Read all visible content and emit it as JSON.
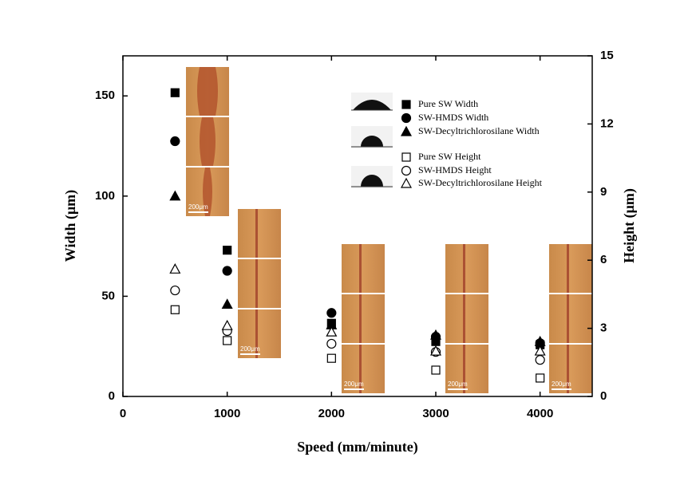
{
  "chart_data": {
    "type": "scatter",
    "x_label": "Speed (mm/minute)",
    "y_label": "Width (μm)",
    "y2_label": "Height (μm)",
    "xlim": [
      0,
      4500
    ],
    "xticks": [
      0,
      1000,
      2000,
      3000,
      4000
    ],
    "ylim": [
      0,
      170
    ],
    "yticks": [
      0,
      50,
      100,
      150
    ],
    "y2lim": [
      0,
      15
    ],
    "y2ticks": [
      0,
      3,
      6,
      9,
      12,
      15
    ],
    "inset_scale_label": "200μm",
    "series": [
      {
        "name": "Pure SW Width",
        "color": "#000000",
        "marker": "square",
        "filled": true,
        "x": [
          500,
          1000,
          2000,
          3000,
          4000
        ],
        "values": [
          151.6,
          73,
          36.5,
          27.4,
          25.8
        ]
      },
      {
        "name": "SW-HMDS Width",
        "color": "#000000",
        "marker": "circle",
        "filled": true,
        "x": [
          500,
          1000,
          2000,
          3000,
          4000
        ],
        "values": [
          127.4,
          62.7,
          41.7,
          29.8,
          26.6
        ]
      },
      {
        "name": "SW-Decyltrichlorosilane Width",
        "color": "#000000",
        "marker": "triangle",
        "filled": true,
        "x": [
          500,
          1000,
          2000,
          3000,
          4000
        ],
        "values": [
          100,
          46,
          35.7,
          30.6,
          27.4
        ]
      },
      {
        "name": "Pure SW Height",
        "color": "#000000",
        "marker": "square",
        "filled": false,
        "axis": "y2",
        "x": [
          500,
          1000,
          2000,
          3000,
          4000
        ],
        "values": [
          3.82,
          2.46,
          1.68,
          1.16,
          0.81
        ]
      },
      {
        "name": "SW-HMDS Height",
        "color": "#000000",
        "marker": "circle",
        "filled": false,
        "axis": "y2",
        "x": [
          500,
          1000,
          2000,
          3000,
          4000
        ],
        "values": [
          4.67,
          2.88,
          2.32,
          1.96,
          1.61
        ]
      },
      {
        "name": "SW-Decyltrichlorosilane Height",
        "color": "#000000",
        "marker": "triangle",
        "filled": false,
        "axis": "y2",
        "x": [
          500,
          1000,
          2000,
          3000,
          4000
        ],
        "values": [
          5.61,
          3.12,
          2.84,
          2.0,
          2.0
        ]
      }
    ]
  }
}
